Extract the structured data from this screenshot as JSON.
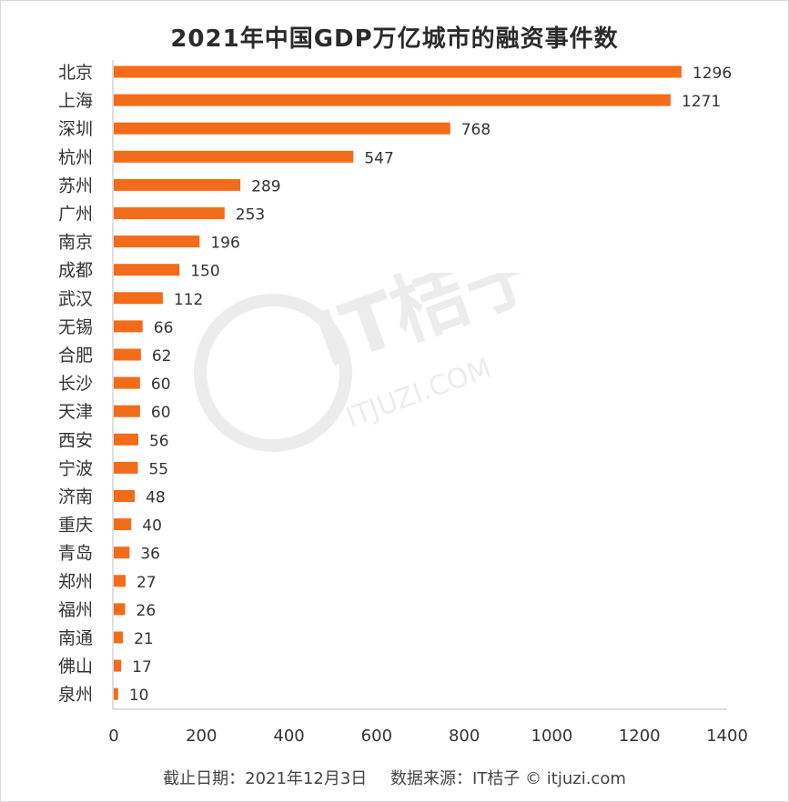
{
  "chart_data": {
    "type": "bar",
    "orientation": "horizontal",
    "title": "2021年中国GDP万亿城市的融资事件数",
    "categories": [
      "北京",
      "上海",
      "深圳",
      "杭州",
      "苏州",
      "广州",
      "南京",
      "成都",
      "武汉",
      "无锡",
      "合肥",
      "长沙",
      "天津",
      "西安",
      "宁波",
      "济南",
      "重庆",
      "青岛",
      "郑州",
      "福州",
      "南通",
      "佛山",
      "泉州"
    ],
    "values": [
      1296,
      1271,
      768,
      547,
      289,
      253,
      196,
      150,
      112,
      66,
      62,
      60,
      60,
      56,
      55,
      48,
      40,
      36,
      27,
      26,
      21,
      17,
      10
    ],
    "xlim": [
      0,
      1400
    ],
    "xticks": [
      0,
      200,
      400,
      600,
      800,
      1000,
      1200,
      1400
    ],
    "xlabel": "",
    "ylabel": "",
    "grid": false,
    "bar_color": "#f26c1a"
  },
  "footer": {
    "date_text": "截止日期：2021年12月3日",
    "source_text": "数据来源：IT桔子 © itjuzi.com"
  },
  "watermark": {
    "brand": "IT桔子",
    "domain": "ITJUZI.COM"
  }
}
